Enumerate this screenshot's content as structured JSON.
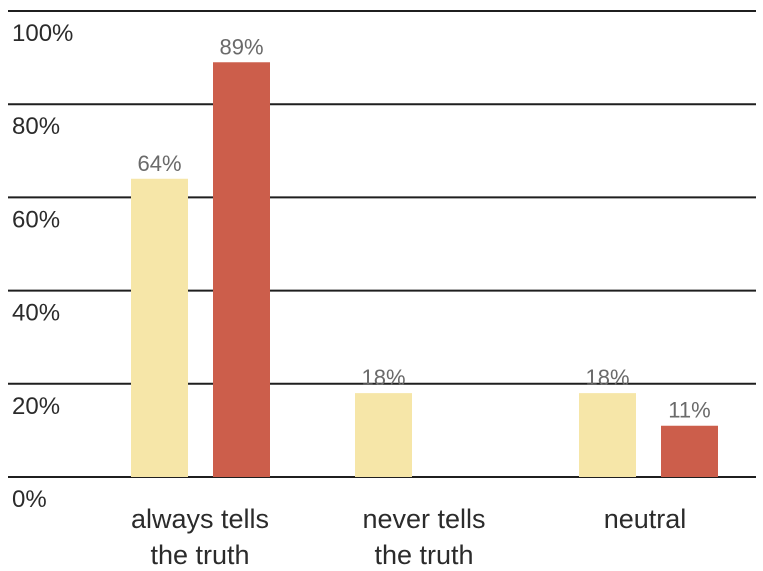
{
  "chart_data": {
    "type": "bar",
    "categories": [
      [
        "always tells",
        "the truth"
      ],
      [
        "never tells",
        "the truth"
      ],
      [
        "neutral"
      ]
    ],
    "series": [
      {
        "color": "#f6e6a8",
        "values": [
          64,
          18,
          18
        ],
        "labels": [
          "64%",
          "18%",
          "18%"
        ]
      },
      {
        "color": "#cc5e4b",
        "values": [
          89,
          null,
          11
        ],
        "labels": [
          "89%",
          "",
          "11%"
        ]
      }
    ],
    "yticks": [
      "0%",
      "20%",
      "40%",
      "60%",
      "80%",
      "100%"
    ],
    "ylim": [
      0,
      100
    ],
    "grid": true,
    "title": "",
    "xlabel": "",
    "ylabel": ""
  }
}
